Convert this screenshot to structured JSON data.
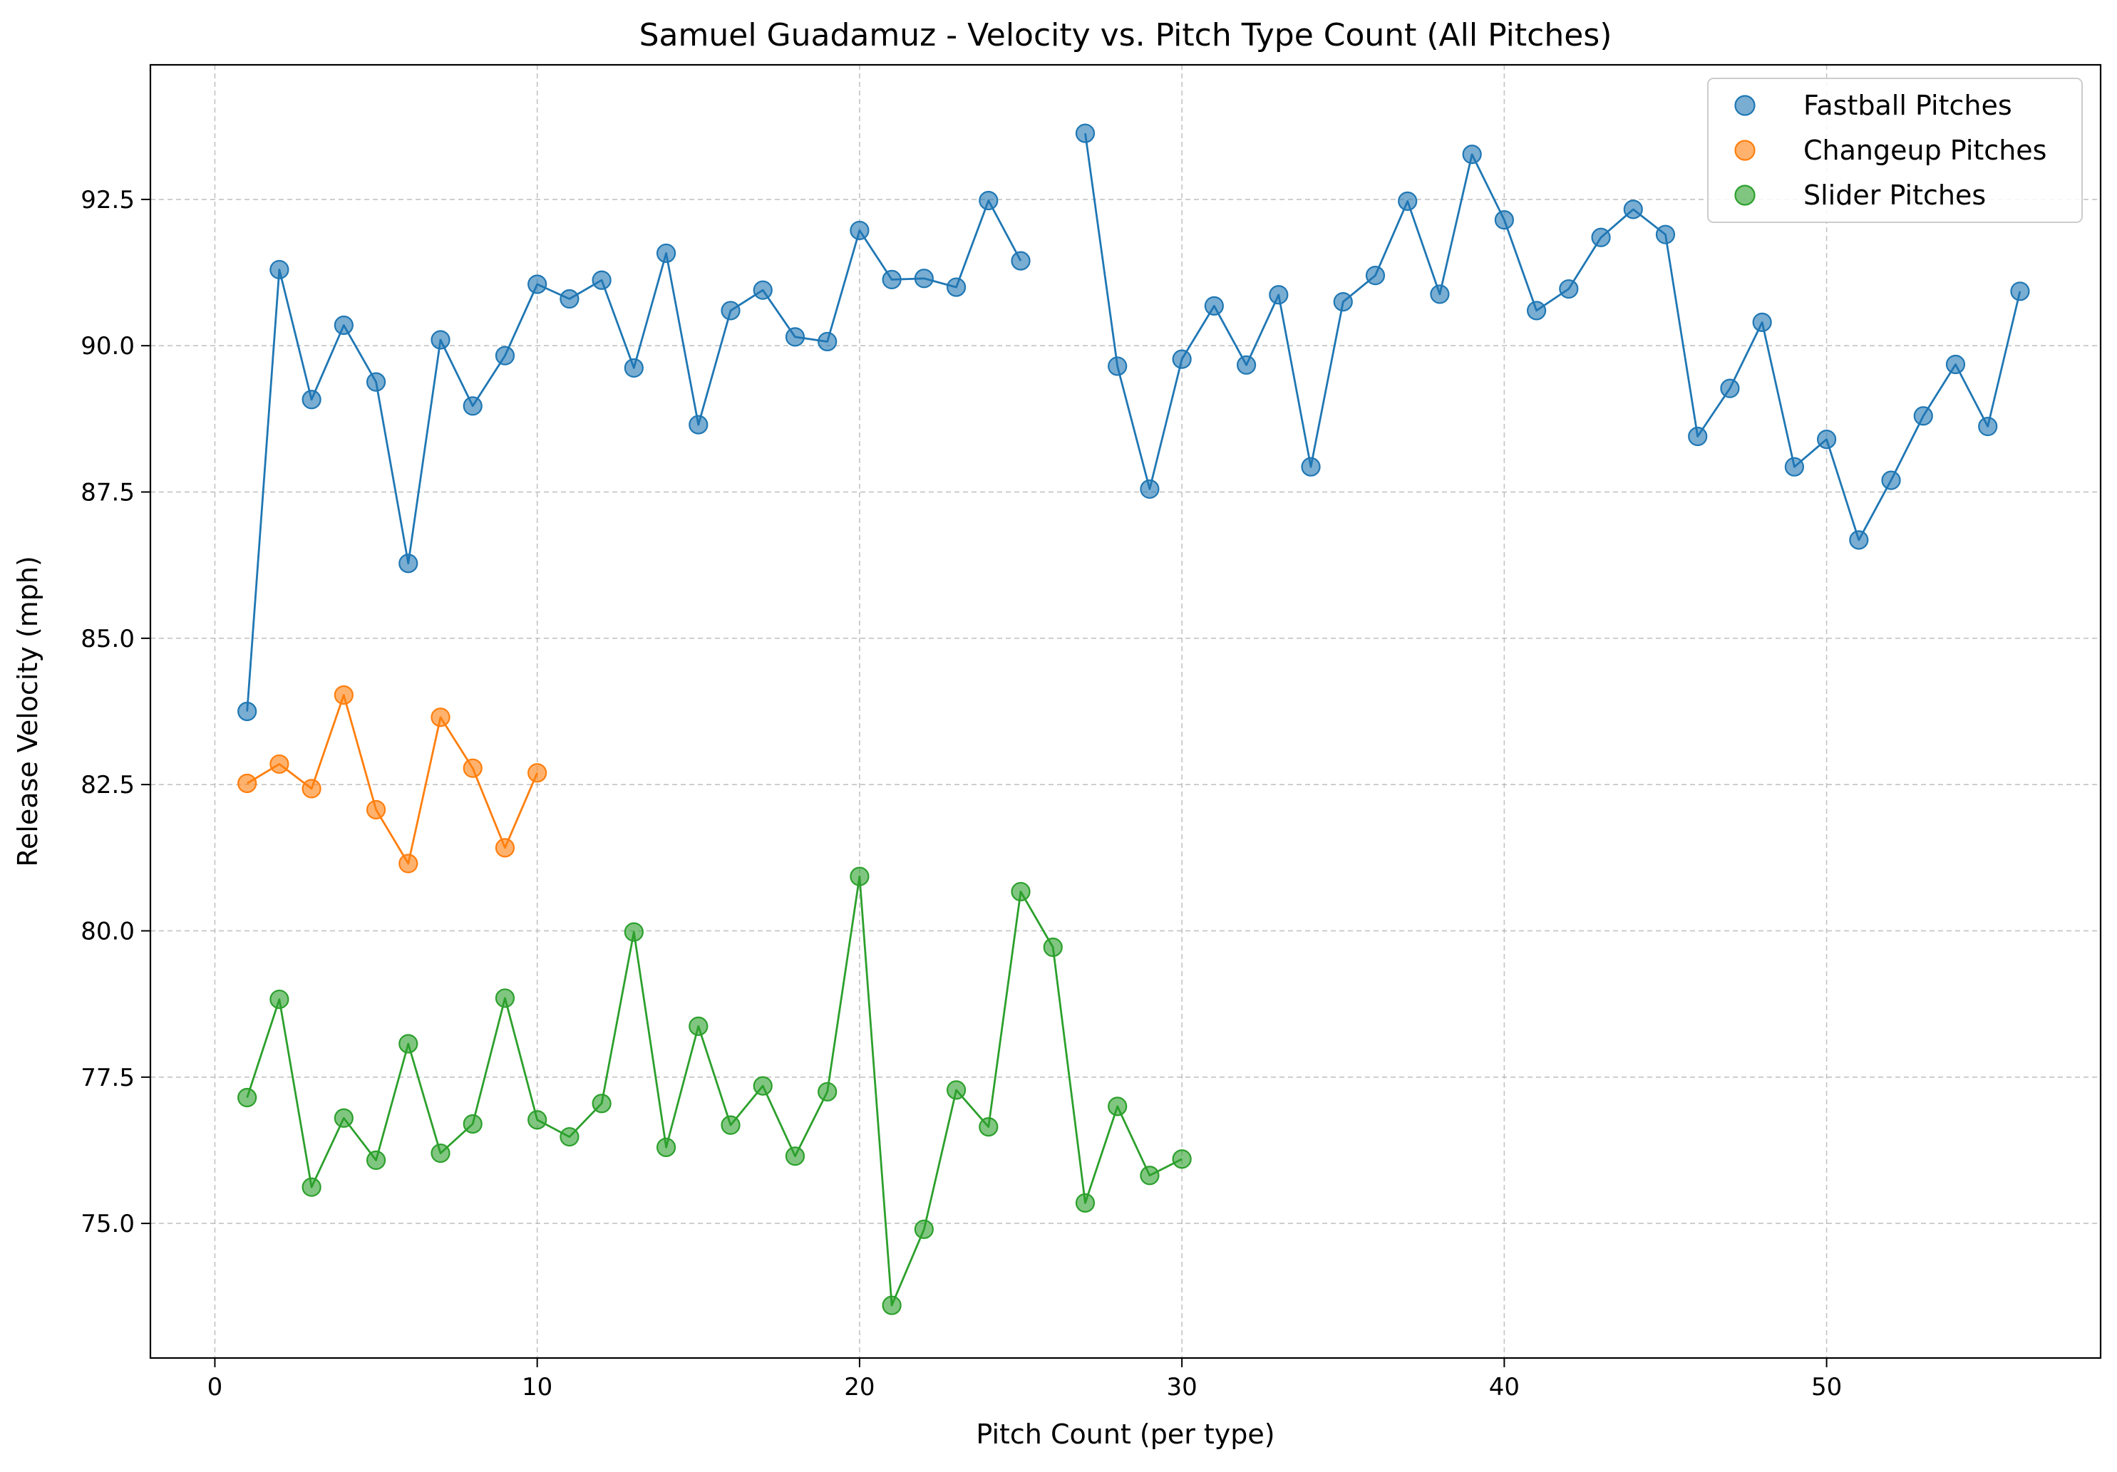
{
  "chart_data": {
    "type": "scatter",
    "title": "Samuel Guadamuz - Velocity vs. Pitch Type Count (All Pitches)",
    "xlabel": "Pitch Count (per type)",
    "ylabel": "Release Velocity (mph)",
    "xlim": [
      -2,
      58.5
    ],
    "ylim": [
      72.7,
      94.8
    ],
    "xticks": [
      0,
      10,
      20,
      30,
      40,
      50
    ],
    "yticks": [
      75.0,
      77.5,
      80.0,
      82.5,
      85.0,
      87.5,
      90.0,
      92.5
    ],
    "grid": true,
    "legend_position": "top-right",
    "series": [
      {
        "name": "Fastball Pitches",
        "color": "#1f77b4",
        "x": [
          1,
          2,
          3,
          4,
          5,
          6,
          7,
          8,
          9,
          10,
          11,
          12,
          13,
          14,
          15,
          16,
          17,
          18,
          19,
          20,
          21,
          22,
          23,
          24,
          25,
          27,
          28,
          29,
          30,
          31,
          32,
          33,
          34,
          35,
          36,
          37,
          38,
          39,
          40,
          41,
          42,
          43,
          44,
          45,
          46,
          47,
          48,
          49,
          50,
          51,
          52,
          53,
          54,
          55,
          56
        ],
        "y": [
          83.75,
          91.3,
          89.08,
          90.35,
          89.38,
          86.28,
          90.1,
          88.97,
          89.83,
          91.05,
          90.8,
          91.12,
          89.62,
          91.58,
          88.65,
          90.6,
          90.95,
          90.15,
          90.07,
          91.97,
          91.13,
          91.15,
          91.0,
          92.48,
          91.45,
          93.63,
          89.65,
          87.55,
          89.77,
          90.68,
          89.67,
          90.87,
          87.93,
          90.75,
          91.2,
          92.47,
          90.88,
          93.27,
          92.15,
          90.6,
          90.97,
          91.85,
          92.33,
          91.9,
          88.45,
          89.27,
          90.4,
          87.93,
          88.4,
          86.68,
          87.7,
          88.8,
          89.68,
          88.62,
          90.93
        ],
        "line_segments": [
          [
            0,
            24
          ],
          [
            25,
            54
          ]
        ]
      },
      {
        "name": "Changeup Pitches",
        "color": "#ff7f0e",
        "x": [
          1,
          2,
          3,
          4,
          5,
          6,
          7,
          8,
          9,
          10
        ],
        "y": [
          82.52,
          82.85,
          82.43,
          84.03,
          82.07,
          81.15,
          83.65,
          82.78,
          81.42,
          82.7
        ],
        "line_segments": [
          [
            0,
            9
          ]
        ]
      },
      {
        "name": "Slider Pitches",
        "color": "#2ca02c",
        "x": [
          1,
          2,
          3,
          4,
          5,
          6,
          7,
          8,
          9,
          10,
          11,
          12,
          13,
          14,
          15,
          16,
          17,
          18,
          19,
          20,
          21,
          22,
          23,
          24,
          25,
          26,
          27,
          28,
          29,
          30
        ],
        "y": [
          77.15,
          78.83,
          75.62,
          76.8,
          76.08,
          78.07,
          76.2,
          76.7,
          78.85,
          76.77,
          76.48,
          77.05,
          79.98,
          76.3,
          78.37,
          76.68,
          77.35,
          76.15,
          77.25,
          80.93,
          73.6,
          74.9,
          77.28,
          76.65,
          80.67,
          79.72,
          75.35,
          77.0,
          75.82,
          76.1
        ],
        "line_segments": [
          [
            0,
            29
          ]
        ]
      }
    ]
  }
}
